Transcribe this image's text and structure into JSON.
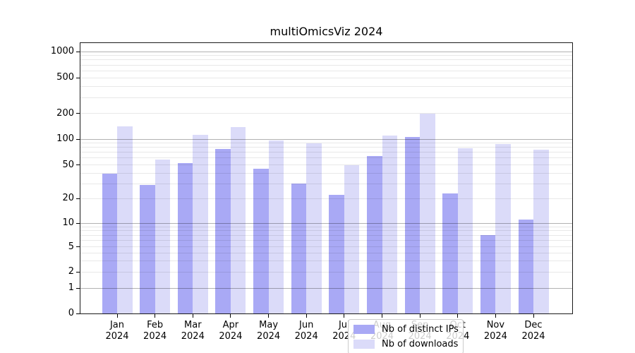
{
  "chart_data": {
    "type": "bar",
    "title": "multiOmicsViz 2024",
    "xlabel": "",
    "ylabel": "",
    "categories": [
      "Jan",
      "Feb",
      "Mar",
      "Apr",
      "May",
      "Jun",
      "Jul",
      "Aug",
      "Sep",
      "Oct",
      "Nov",
      "Dec"
    ],
    "x_sublabel": "2024",
    "series": [
      {
        "name": "Nb of distinct IPs",
        "color": "#a9a9f5",
        "values": [
          39,
          29,
          52,
          77,
          45,
          30,
          22,
          64,
          106,
          23,
          7,
          11
        ]
      },
      {
        "name": "Nb of downloads",
        "color": "#dbdbf9",
        "values": [
          140,
          58,
          112,
          137,
          97,
          90,
          50,
          110,
          198,
          78,
          87,
          76
        ]
      }
    ],
    "y_ticks": [
      0,
      1,
      2,
      5,
      10,
      20,
      50,
      100,
      200,
      500,
      1000
    ],
    "y_scale": "log-like",
    "ylim": [
      0,
      1000
    ],
    "grid": "on",
    "legend_position": "inside-bottom-center"
  }
}
